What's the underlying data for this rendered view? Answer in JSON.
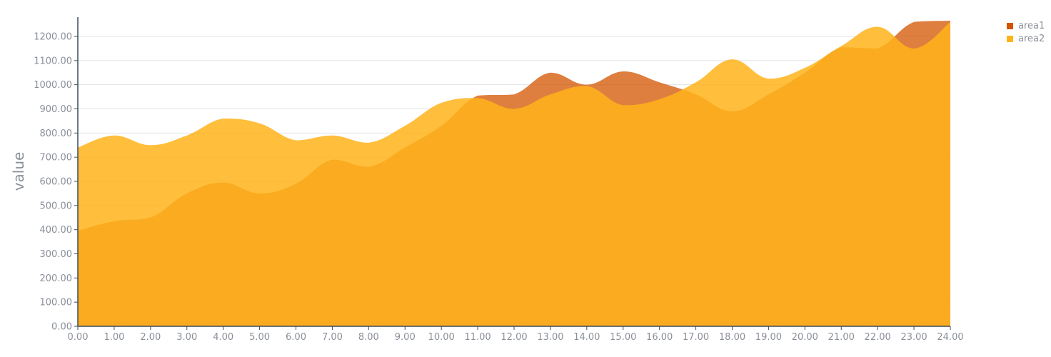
{
  "chart_data": {
    "type": "area",
    "title": "",
    "xlabel": "",
    "ylabel": "value",
    "xlim": [
      0,
      24
    ],
    "ylim": [
      0,
      1300
    ],
    "grid": true,
    "legend_position": "top-right",
    "x_ticks": [
      "0.00",
      "1.00",
      "2.00",
      "3.00",
      "4.00",
      "5.00",
      "6.00",
      "7.00",
      "8.00",
      "9.00",
      "10.00",
      "11.00",
      "12.00",
      "13.00",
      "14.00",
      "15.00",
      "16.00",
      "17.00",
      "18.00",
      "19.00",
      "20.00",
      "21.00",
      "22.00",
      "23.00",
      "24.00"
    ],
    "y_ticks": [
      "0.00",
      "100.00",
      "200.00",
      "300.00",
      "400.00",
      "500.00",
      "600.00",
      "700.00",
      "800.00",
      "900.00",
      "1000.00",
      "1100.00",
      "1200.00"
    ],
    "x": [
      0,
      1,
      2,
      3,
      4,
      5,
      6,
      7,
      8,
      9,
      10,
      11,
      12,
      13,
      14,
      15,
      16,
      17,
      18,
      19,
      20,
      21,
      22,
      23,
      24
    ],
    "series": [
      {
        "name": "area1",
        "color": "#d35400",
        "values": [
          395,
          435,
          450,
          550,
          595,
          550,
          590,
          690,
          660,
          740,
          830,
          955,
          960,
          1050,
          1000,
          1055,
          1010,
          960,
          890,
          960,
          1050,
          1155,
          1150,
          1260,
          1265
        ]
      },
      {
        "name": "area2",
        "color": "#ffb31a",
        "values": [
          740,
          790,
          750,
          790,
          860,
          840,
          770,
          790,
          760,
          830,
          925,
          945,
          900,
          960,
          995,
          915,
          940,
          1010,
          1105,
          1025,
          1070,
          1160,
          1240,
          1150,
          1260
        ]
      }
    ]
  }
}
